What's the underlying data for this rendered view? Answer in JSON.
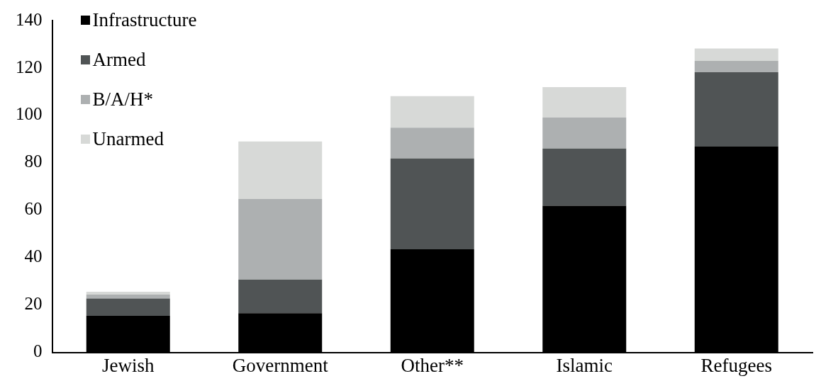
{
  "chart_data": {
    "type": "bar",
    "stacked": true,
    "categories": [
      "Jewish",
      "Government",
      "Other**",
      "Islamic",
      "Refugees"
    ],
    "series": [
      {
        "name": "Infrastructure",
        "color": "#000000",
        "values": [
          15.4,
          16.5,
          43.5,
          61.9,
          86.8
        ]
      },
      {
        "name": "Armed",
        "color": "#505455",
        "values": [
          7.3,
          14.2,
          38.3,
          24.1,
          31.4
        ]
      },
      {
        "name": "B/A/H*",
        "color": "#adb0b1",
        "values": [
          1.7,
          34,
          13,
          13.1,
          4.8
        ]
      },
      {
        "name": "Unarmed",
        "color": "#d7d9d7",
        "values": [
          1.2,
          24.3,
          13.3,
          12.8,
          5.2
        ]
      }
    ],
    "ylim": [
      0,
      140
    ],
    "yticks": [
      0,
      20,
      40,
      60,
      80,
      100,
      120,
      140
    ],
    "grid": false,
    "legend": "top left"
  }
}
